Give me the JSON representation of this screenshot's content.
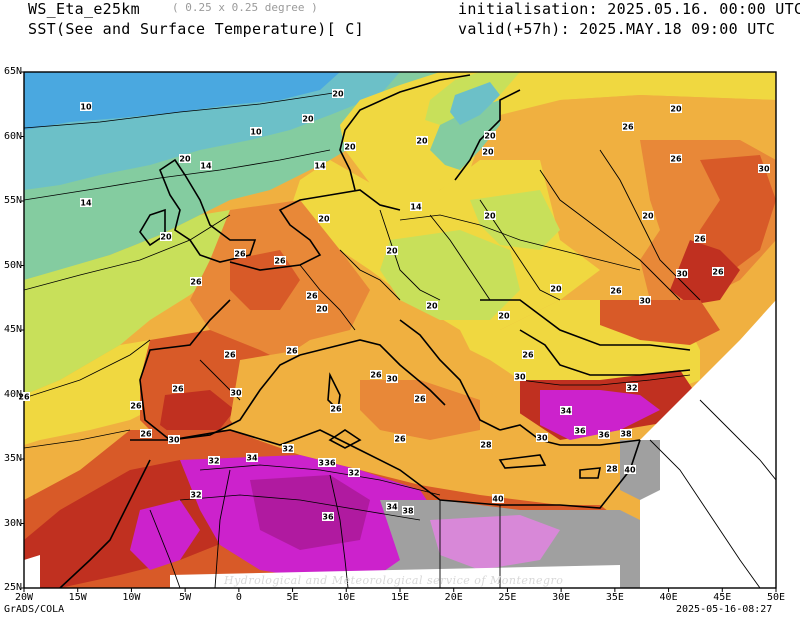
{
  "header": {
    "model": "WS_Eta_e25km",
    "resolution": "( 0.25 x 0.25 degree )",
    "field": "SST(See and Surface Temperature)[ C]",
    "initialisation": "initialisation: 2025.05.16. 00:00 UTC",
    "valid": "valid(+57h): 2025.MAY.18 09:00 UTC"
  },
  "axes": {
    "lat_labels": [
      "65N",
      "60N",
      "55N",
      "50N",
      "45N",
      "40N",
      "35N",
      "30N",
      "25N"
    ],
    "lon_labels": [
      "20W",
      "15W",
      "10W",
      "5W",
      "0",
      "5E",
      "10E",
      "15E",
      "20E",
      "25E",
      "30E",
      "35E",
      "40E",
      "45E",
      "50E"
    ]
  },
  "contour_labels": {
    "values": [
      "10",
      "10",
      "14",
      "14",
      "14",
      "14",
      "20",
      "20",
      "20",
      "20",
      "20",
      "20",
      "20",
      "20",
      "20",
      "20",
      "20",
      "20",
      "20",
      "20",
      "20",
      "20",
      "20",
      "26",
      "26",
      "26",
      "26",
      "26",
      "26",
      "26",
      "26",
      "26",
      "26",
      "26",
      "26",
      "26",
      "26",
      "26",
      "26",
      "26",
      "26",
      "26",
      "26",
      "28",
      "28",
      "30",
      "30",
      "30",
      "30",
      "30",
      "30",
      "30",
      "30",
      "32",
      "32",
      "32",
      "32",
      "32",
      "32",
      "34",
      "34",
      "34",
      "36",
      "36",
      "36",
      "36",
      "38",
      "38",
      "40",
      "40"
    ]
  },
  "legend_colors": {
    "below_10": "#4aa8e0",
    "10_14": "#6cc0c8",
    "14_17": "#84cca0",
    "17_20": "#c8e05a",
    "20_23": "#f0d840",
    "23_26": "#f0b040",
    "26_29": "#e88838",
    "29_32": "#d85a28",
    "32_35": "#c03020",
    "35_38": "#cc22cc",
    "over_38": "#d888d8",
    "missing": "#a0a0a0"
  },
  "footer": {
    "software": "GrADS/COLA",
    "credit": "Hydrological and Meteorological service of Montenegro",
    "generated": "2025-05-16-08:27"
  }
}
